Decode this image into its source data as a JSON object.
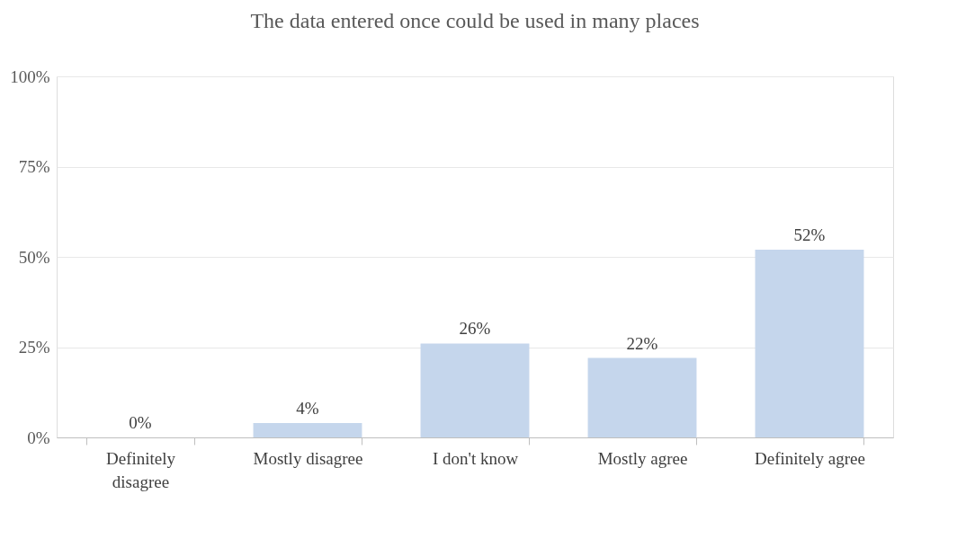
{
  "chart_data": {
    "type": "bar",
    "title": "The data entered once could be used in many places",
    "categories": [
      "Definitely disagree",
      "Mostly disagree",
      "I don't know",
      "Mostly agree",
      "Definitely agree"
    ],
    "values": [
      0,
      4,
      26,
      22,
      52
    ],
    "color": "#c5d6ec",
    "value_labels": [
      "0%",
      "4%",
      "26%",
      "22%",
      "52%"
    ],
    "ylim": [
      0,
      100
    ],
    "yticks": [
      {
        "value": 0,
        "label": "0%"
      },
      {
        "value": 25,
        "label": "25%"
      },
      {
        "value": 50,
        "label": "50%"
      },
      {
        "value": 75,
        "label": "75%"
      },
      {
        "value": 100,
        "label": "100%"
      }
    ],
    "grid": "y"
  }
}
